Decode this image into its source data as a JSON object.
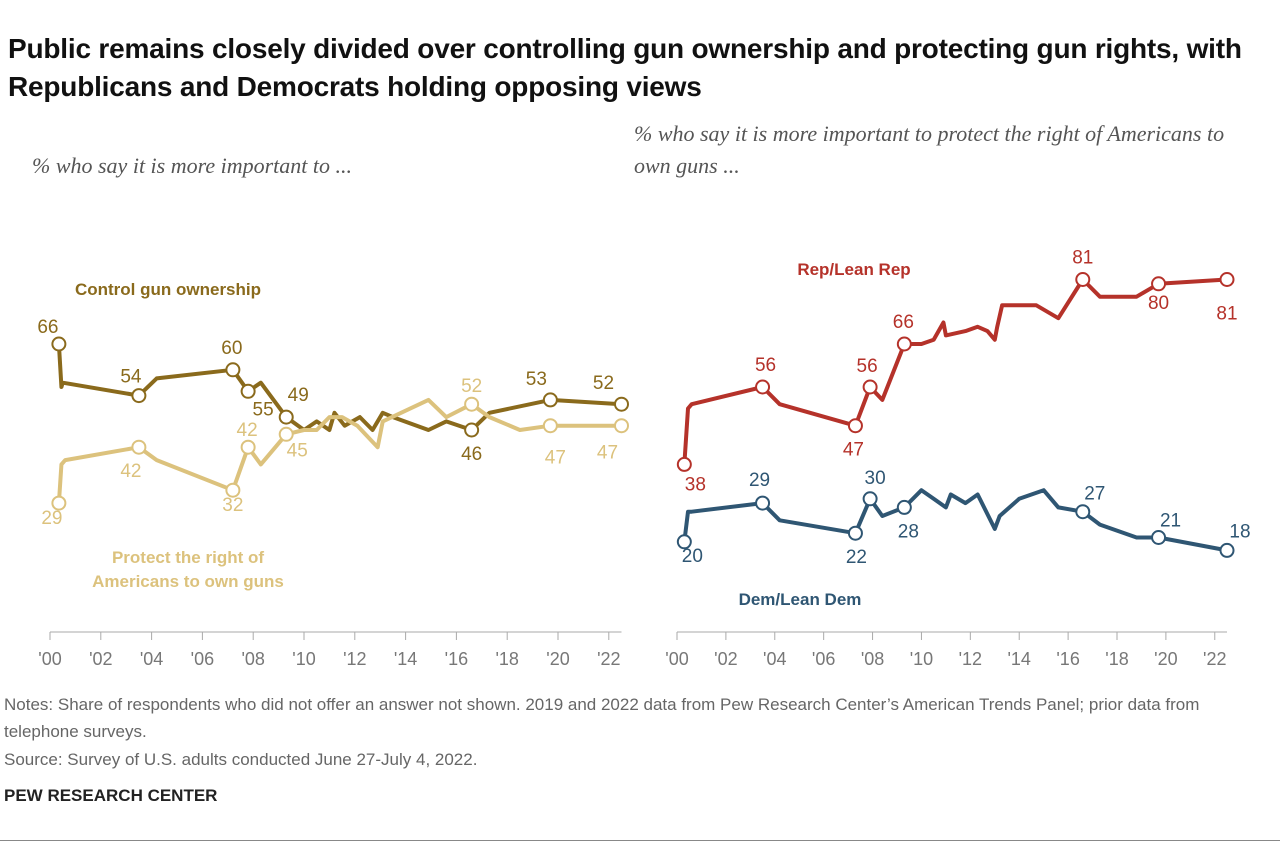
{
  "title": "Public remains closely divided over controlling gun ownership and protecting gun rights, with Republicans and Democrats holding opposing views",
  "chart_data": [
    {
      "type": "line",
      "subtitle": "% who say it is more important to ...",
      "xlim": [
        2000,
        2022.5
      ],
      "ylim": [
        0,
        90
      ],
      "xticks": [
        {
          "value": 2000,
          "label": "'00"
        },
        {
          "value": 2002,
          "label": "'02"
        },
        {
          "value": 2004,
          "label": "'04"
        },
        {
          "value": 2006,
          "label": "'06"
        },
        {
          "value": 2008,
          "label": "'08"
        },
        {
          "value": 2010,
          "label": "'10"
        },
        {
          "value": 2012,
          "label": "'12"
        },
        {
          "value": 2014,
          "label": "'14"
        },
        {
          "value": 2016,
          "label": "'16"
        },
        {
          "value": 2018,
          "label": "'18"
        },
        {
          "value": 2020,
          "label": "'20"
        },
        {
          "value": 2022,
          "label": "'22"
        }
      ],
      "series": [
        {
          "name": "Control gun ownership",
          "color": "#8a6a1c",
          "x": [
            2000.35,
            2000.45,
            2000.5,
            2003.5,
            2004.2,
            2007.2,
            2007.8,
            2008.3,
            2009.3,
            2010,
            2010.5,
            2011,
            2011.2,
            2011.6,
            2012.2,
            2012.7,
            2013.1,
            2013.5,
            2014.9,
            2015.6,
            2016.6,
            2017.3,
            2019.7,
            2022.5
          ],
          "values": [
            66,
            56,
            57,
            54,
            58,
            60,
            55,
            57,
            49,
            46,
            48,
            46,
            50,
            47,
            49,
            46,
            50,
            49,
            46,
            48,
            46,
            50,
            53,
            52
          ],
          "labeled_points": [
            0,
            3,
            5,
            6,
            8,
            20,
            22,
            23
          ]
        },
        {
          "name": "Protect the right of Americans to own guns",
          "color": "#dcc27d",
          "x": [
            2000.35,
            2000.45,
            2000.6,
            2003.5,
            2004.2,
            2007.2,
            2007.8,
            2008.3,
            2009.3,
            2010,
            2010.5,
            2011,
            2011.5,
            2012.1,
            2012.9,
            2013.1,
            2014.9,
            2015.6,
            2016.6,
            2017.3,
            2018.5,
            2019.7,
            2022.5
          ],
          "values": [
            29,
            38,
            39,
            42,
            39,
            32,
            42,
            38,
            45,
            46,
            46,
            49,
            49,
            47,
            42,
            48,
            53,
            49,
            52,
            49,
            46,
            47,
            47
          ],
          "labeled_points": [
            0,
            3,
            5,
            6,
            8,
            18,
            21,
            22
          ]
        }
      ]
    },
    {
      "type": "line",
      "subtitle": "% who say it is more important to protect the right of Americans to own guns ...",
      "xlim": [
        2000,
        2022.5
      ],
      "ylim": [
        0,
        90
      ],
      "xticks": [
        {
          "value": 2000,
          "label": "'00"
        },
        {
          "value": 2002,
          "label": "'02"
        },
        {
          "value": 2004,
          "label": "'04"
        },
        {
          "value": 2006,
          "label": "'06"
        },
        {
          "value": 2008,
          "label": "'08"
        },
        {
          "value": 2010,
          "label": "'10"
        },
        {
          "value": 2012,
          "label": "'12"
        },
        {
          "value": 2014,
          "label": "'14"
        },
        {
          "value": 2016,
          "label": "'16"
        },
        {
          "value": 2018,
          "label": "'18"
        },
        {
          "value": 2020,
          "label": "'20"
        },
        {
          "value": 2022,
          "label": "'22"
        }
      ],
      "series": [
        {
          "name": "Rep/Lean Rep",
          "color": "#b5322a",
          "x": [
            2000.3,
            2000.45,
            2000.6,
            2003.5,
            2004.2,
            2007.3,
            2007.9,
            2008.4,
            2009.3,
            2010,
            2010.5,
            2010.9,
            2011,
            2011.8,
            2012.3,
            2012.7,
            2013,
            2013.1,
            2013.3,
            2014.7,
            2015.6,
            2016.6,
            2017.3,
            2018.8,
            2019.7,
            2022.5
          ],
          "values": [
            38,
            51,
            52,
            56,
            52,
            47,
            56,
            53,
            66,
            66,
            67,
            71,
            68,
            69,
            70,
            69,
            67,
            70,
            75,
            75,
            72,
            81,
            77,
            77,
            80,
            81
          ],
          "labeled_points": [
            0,
            3,
            5,
            6,
            8,
            21,
            24,
            25
          ]
        },
        {
          "name": "Dem/Lean Dem",
          "color": "#2f5673",
          "x": [
            2000.3,
            2000.45,
            2000.6,
            2003.5,
            2004.2,
            2007.3,
            2007.9,
            2008.4,
            2009.3,
            2010,
            2010.5,
            2011,
            2011.2,
            2011.8,
            2012.3,
            2013,
            2013.2,
            2014,
            2015,
            2015.6,
            2016.6,
            2017.3,
            2018.8,
            2019.7,
            2022.5
          ],
          "values": [
            20,
            27,
            27,
            29,
            25,
            22,
            30,
            26,
            28,
            32,
            30,
            28,
            31,
            29,
            31,
            23,
            26,
            30,
            32,
            28,
            27,
            24,
            21,
            21,
            18
          ],
          "labeled_points": [
            0,
            3,
            5,
            6,
            8,
            20,
            23,
            24
          ]
        }
      ]
    }
  ],
  "notes": [
    "Notes: Share of respondents who did not offer an answer not shown. 2019 and 2022 data from Pew Research Center’s American Trends Panel; prior data from telephone surveys.",
    "Source: Survey of U.S. adults conducted June 27-July 4, 2022."
  ],
  "footer": "PEW RESEARCH CENTER"
}
